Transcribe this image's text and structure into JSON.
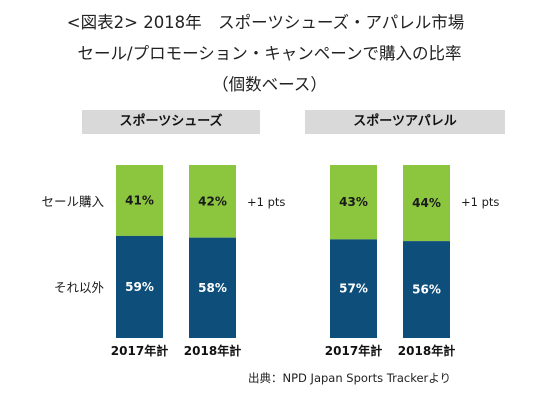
{
  "title_lines": [
    "<図表2> 2018年　スポーツシューズ・アパレル市場",
    "セール/プロモーション・キャンペーンで購入の比率",
    "（個数ベース）"
  ],
  "source": "出典：NPD Japan Sports Trackerより",
  "colors": {
    "sale": "#8cc63f",
    "other": "#0d4e7a",
    "header_bg": "#d9d9d9"
  },
  "chart_data": [
    {
      "type": "bar",
      "stacked": true,
      "title": "スポーツシューズ",
      "categories": [
        "2017年計",
        "2018年計"
      ],
      "series": [
        {
          "name": "セール購入",
          "values": [
            41,
            42
          ]
        },
        {
          "name": "それ以外",
          "values": [
            59,
            58
          ]
        }
      ],
      "unit": "%",
      "annotation": "+1 pts",
      "ylim": [
        0,
        100
      ]
    },
    {
      "type": "bar",
      "stacked": true,
      "title": "スポーツアパレル",
      "categories": [
        "2017年計",
        "2018年計"
      ],
      "series": [
        {
          "name": "セール購入",
          "values": [
            43,
            44
          ]
        },
        {
          "name": "それ以外",
          "values": [
            57,
            56
          ]
        }
      ],
      "unit": "%",
      "annotation": "+1 pts",
      "ylim": [
        0,
        100
      ]
    }
  ]
}
